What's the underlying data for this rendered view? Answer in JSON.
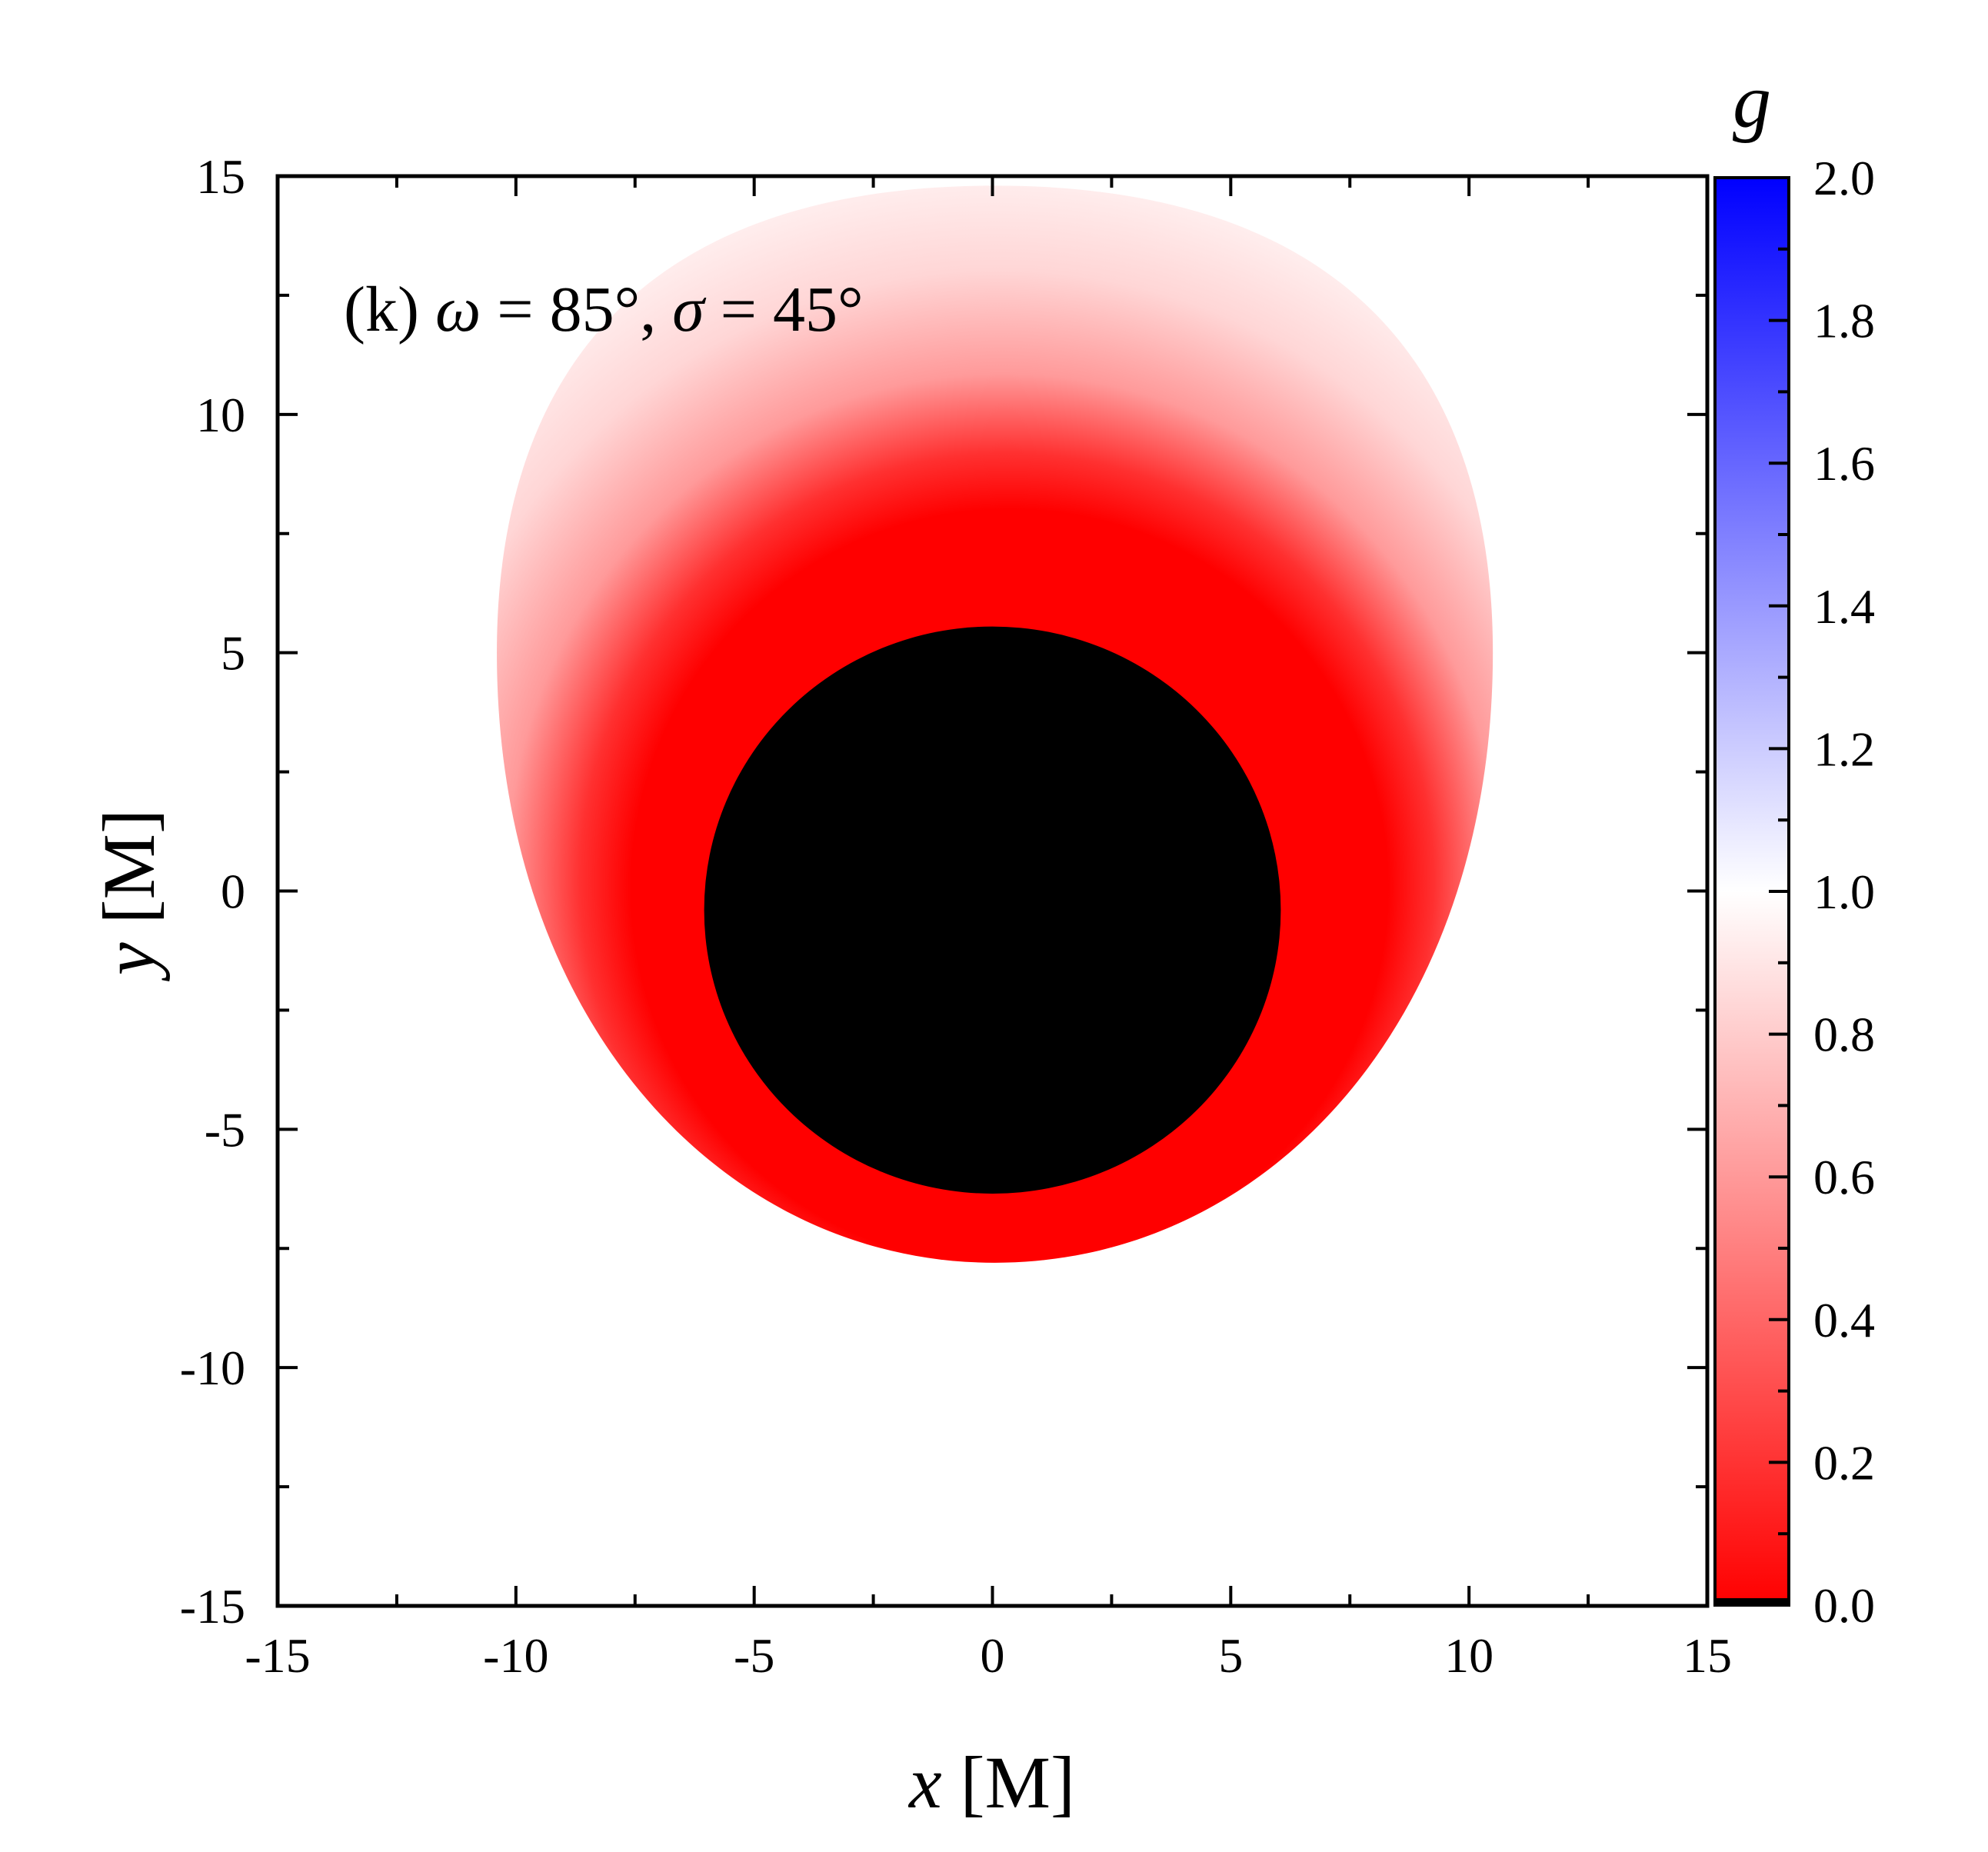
{
  "chart_data": {
    "type": "heatmap",
    "annotation": {
      "prefix": "(k) ",
      "var1": "ω",
      "mid": " = 85°, ",
      "var2": "σ",
      "suffix": " = 45°"
    },
    "xlabel": {
      "var": "x",
      "unit": " [M]"
    },
    "ylabel": {
      "var": "y",
      "unit": " [M]"
    },
    "xlim": [
      -15,
      15
    ],
    "ylim": [
      -15,
      15
    ],
    "xticks": [
      -15,
      -10,
      -5,
      0,
      5,
      10,
      15
    ],
    "yticks": [
      -15,
      -10,
      -5,
      0,
      5,
      10,
      15
    ],
    "minor_tick_step": 2.5,
    "colorbar": {
      "label": "g",
      "range": [
        0.0,
        2.0
      ],
      "ticks": [
        "0.0",
        "0.2",
        "0.4",
        "0.6",
        "0.8",
        "1.0",
        "1.2",
        "1.4",
        "1.6",
        "1.8",
        "2.0"
      ],
      "colormap": [
        {
          "value": 0.0,
          "color": "#ff0000"
        },
        {
          "value": 1.0,
          "color": "#ffffff"
        },
        {
          "value": 2.0,
          "color": "#0000ff"
        }
      ]
    },
    "shadow": {
      "color": "#000000",
      "center": [
        0.0,
        -0.4
      ],
      "radius_x": 6.05,
      "radius_y": 5.95
    },
    "glow": {
      "description_color_low": "#ff0000",
      "min_g": 0.0,
      "outer_extent": {
        "left": -10.4,
        "right": 10.5,
        "top": 14.8,
        "bottom": -7.8
      }
    },
    "grid": false
  }
}
